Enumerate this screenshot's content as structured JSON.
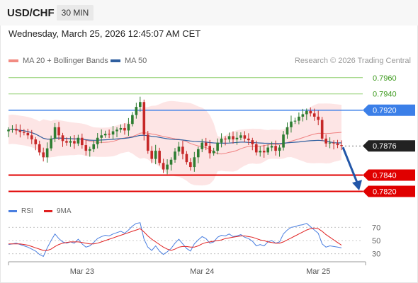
{
  "header": {
    "symbol": "USD/CHF",
    "timeframe": "30 MIN",
    "datetime": "Wednesday, March 25, 2026 12:45:07 AM CET"
  },
  "legend": {
    "ma20": "MA 20 + Bollinger Bands",
    "ma50": "MA 50",
    "copyright": "Research © 2026 Trading Central",
    "rsi": "RSI",
    "rsi_ma": "9MA"
  },
  "colors": {
    "resistance_line": "#8fcf6f",
    "resistance_text": "#3d9a1e",
    "pivot_blue": "#3b7fe8",
    "support_red": "#e00000",
    "current_price_bg": "#222222",
    "bullish_candle": "#2e7d32",
    "bearish_candle": "#c62828",
    "bollinger_fill": "#fcdcdc",
    "ma20": "#f08080",
    "ma50": "#2f5f9f",
    "rsi": "#4a7fe0",
    "rsi_ma": "#e02020",
    "arrow": "#2256a8"
  },
  "chart_data": {
    "type": "candlestick",
    "instrument": "USD/CHF",
    "interval": "30 MIN",
    "price_range": [
      0.781,
      0.7972
    ],
    "levels": [
      {
        "label": "0.7960",
        "value": 0.796,
        "kind": "resistance"
      },
      {
        "label": "0.7940",
        "value": 0.794,
        "kind": "resistance"
      },
      {
        "label": "0.7920",
        "value": 0.792,
        "kind": "pivot"
      },
      {
        "label": "0.7876",
        "value": 0.7876,
        "kind": "current"
      },
      {
        "label": "0.7840",
        "value": 0.784,
        "kind": "support"
      },
      {
        "label": "0.7820",
        "value": 0.782,
        "kind": "support"
      }
    ],
    "x_labels": [
      "Mar 23",
      "Mar 24",
      "Mar 25"
    ],
    "x_label_indices": [
      19,
      50,
      80
    ],
    "closes": [
      0.7896,
      0.7897,
      0.7895,
      0.7893,
      0.7892,
      0.7889,
      0.7884,
      0.7878,
      0.7868,
      0.7862,
      0.7873,
      0.7885,
      0.7899,
      0.7889,
      0.7882,
      0.788,
      0.7882,
      0.7879,
      0.7886,
      0.7877,
      0.787,
      0.7872,
      0.7878,
      0.7886,
      0.7889,
      0.7891,
      0.789,
      0.7894,
      0.7896,
      0.7898,
      0.7895,
      0.7903,
      0.7914,
      0.7924,
      0.793,
      0.789,
      0.787,
      0.786,
      0.787,
      0.7855,
      0.7847,
      0.7853,
      0.7859,
      0.7869,
      0.7875,
      0.7866,
      0.7856,
      0.785,
      0.7862,
      0.7872,
      0.788,
      0.7876,
      0.7867,
      0.787,
      0.788,
      0.7885,
      0.7884,
      0.7888,
      0.7884,
      0.7886,
      0.7889,
      0.7885,
      0.7883,
      0.7878,
      0.7868,
      0.787,
      0.7868,
      0.7874,
      0.7876,
      0.787,
      0.7874,
      0.789,
      0.7899,
      0.7906,
      0.7907,
      0.7912,
      0.7915,
      0.7919,
      0.7916,
      0.7912,
      0.7908,
      0.7885,
      0.7879,
      0.788,
      0.7879,
      0.7877,
      0.7876
    ],
    "rsi_range": [
      20,
      80
    ],
    "rsi_ticks": [
      30,
      50,
      70
    ],
    "rsi": [
      44,
      45,
      46,
      44,
      42,
      40,
      37,
      34,
      29,
      26,
      39,
      50,
      60,
      53,
      48,
      46,
      48,
      46,
      52,
      45,
      40,
      42,
      47,
      53,
      56,
      58,
      57,
      60,
      62,
      64,
      61,
      66,
      72,
      76,
      77,
      52,
      40,
      35,
      42,
      34,
      29,
      33,
      38,
      46,
      52,
      45,
      38,
      34,
      45,
      51,
      56,
      53,
      46,
      48,
      55,
      58,
      57,
      60,
      56,
      57,
      59,
      55,
      53,
      49,
      42,
      44,
      42,
      48,
      50,
      46,
      48,
      60,
      66,
      70,
      71,
      73,
      74,
      76,
      71,
      66,
      61,
      45,
      40,
      42,
      41,
      40,
      39
    ],
    "rsi_ma": [
      45,
      45,
      45,
      45,
      44,
      43,
      41,
      39,
      37,
      35,
      35,
      37,
      41,
      44,
      46,
      47,
      48,
      48,
      48,
      47,
      46,
      45,
      45,
      46,
      48,
      50,
      52,
      54,
      56,
      58,
      60,
      62,
      64,
      66,
      68,
      63,
      57,
      52,
      48,
      44,
      40,
      37,
      35,
      37,
      40,
      41,
      41,
      40,
      40,
      42,
      45,
      47,
      48,
      49,
      50,
      51,
      53,
      54,
      55,
      56,
      57,
      57,
      56,
      55,
      53,
      51,
      50,
      48,
      47,
      46,
      46,
      48,
      51,
      54,
      57,
      60,
      63,
      66,
      68,
      69,
      68,
      64,
      59,
      55,
      51,
      47,
      43
    ]
  }
}
